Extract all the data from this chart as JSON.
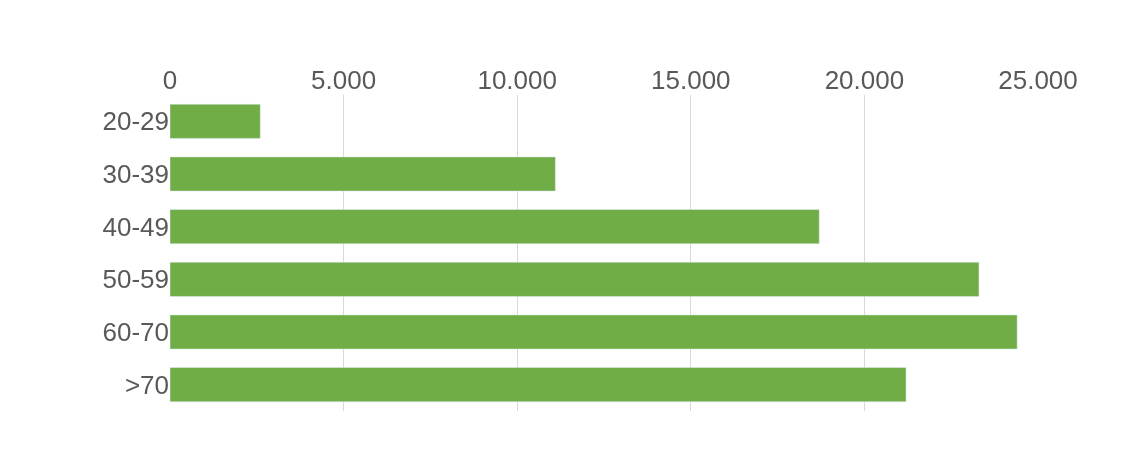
{
  "chart_data": {
    "type": "bar",
    "orientation": "horizontal",
    "categories": [
      "20-29",
      "30-39",
      "40-49",
      "50-59",
      "60-70",
      ">70"
    ],
    "values": [
      2600,
      11100,
      18700,
      23300,
      24400,
      21200
    ],
    "color": "#70ad47",
    "xlim": [
      0,
      25000
    ],
    "xticks": [
      0,
      {
        "value": 5000,
        "label": "5.000"
      },
      {
        "value": 10000,
        "label": "10.000"
      },
      {
        "value": 15000,
        "label": "15.000"
      },
      {
        "value": 20000,
        "label": "20.000"
      },
      {
        "value": 25000,
        "label": "25.000"
      }
    ],
    "grid": "x"
  }
}
